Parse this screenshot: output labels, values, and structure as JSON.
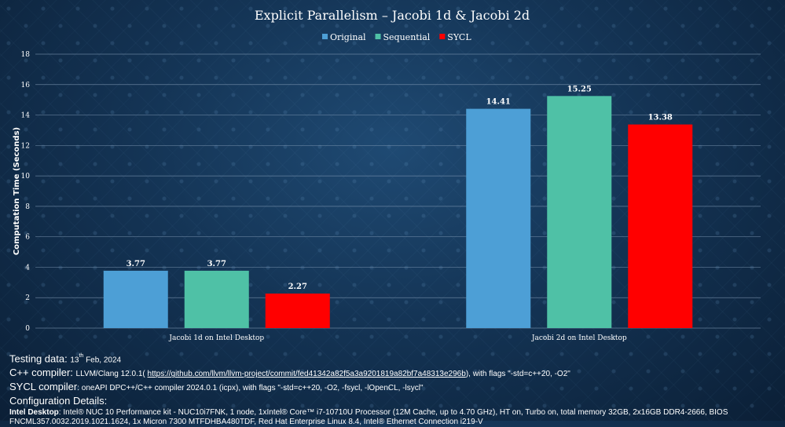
{
  "chart_data": {
    "type": "bar",
    "title": "Explicit Parallelism – Jacobi 1d & Jacobi 2d",
    "categories": [
      "Jacobi 1d on Intel Desktop",
      "Jacobi 2d on Intel Desktop"
    ],
    "series": [
      {
        "name": "Original",
        "color": "#4d9fd6",
        "values": [
          3.77,
          14.41
        ]
      },
      {
        "name": "Sequential",
        "color": "#4fc1a6",
        "values": [
          3.77,
          15.25
        ]
      },
      {
        "name": "SYCL",
        "color": "#ff0000",
        "values": [
          2.27,
          13.38
        ]
      }
    ],
    "data_labels": [
      [
        "3.77",
        "14.41"
      ],
      [
        "3.77",
        "15.25"
      ],
      [
        "2.27",
        "13.38"
      ]
    ],
    "ylabel": "Computation Time (Seconds)",
    "xlabel": "",
    "ylim": [
      0,
      18
    ],
    "yticks": [
      "0",
      "2",
      "4",
      "6",
      "8",
      "10",
      "12",
      "14",
      "16",
      "18"
    ],
    "grid": true,
    "legend_position": "top-center"
  },
  "notes": {
    "testing_label": "Testing data: ",
    "testing_day": "13",
    "testing_suffix": "th",
    "testing_rest": " Feb, 2024",
    "cpp_label": "C++ compiler: ",
    "cpp_prefix": "LLVM/Clang 12.0.1( ",
    "cpp_link": "https://github.com/llvm/llvm-project/commit/fed41342a82f5a3a9201819a82bf7a48313e296b",
    "cpp_suffix": "), with flags \"-std=c++20, -O2\"",
    "sycl_label": "SYCL compiler",
    "sycl_value": ": oneAPI DPC++/C++ compiler 2024.0.1 (icpx), with flags \"-std=c++20, -O2, -fsycl, -lOpenCL, -lsycl\"",
    "config_heading": "Configuration Details:",
    "desktop_label": "Intel Desktop",
    "desktop_text": ": Intel® NUC 10 Performance kit - NUC10i7FNK, 1 node, 1xIntel® Core™ i7-10710U Processor (12M Cache, up to 4.70 GHz), HT on, Turbo on, total memory 32GB, 2x16GB DDR4-2666, BIOS FNCML357.0032.2019.1021.1624, 1x Micron 7300 MTFDHBA480TDF, Red Hat Enterprise Linux 8.4, Intel® Ethernet Connection i219-V"
  }
}
